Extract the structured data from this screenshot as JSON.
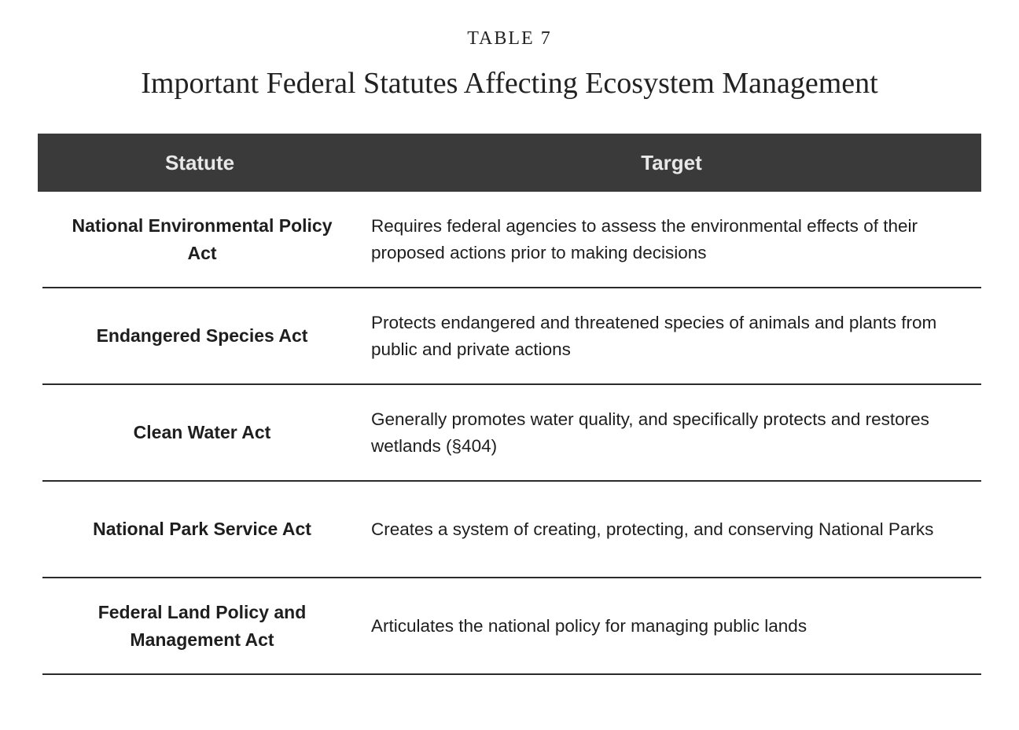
{
  "table_label": "TABLE 7",
  "table_title": "Important Federal Statutes Affecting Ecosystem Management",
  "columns": {
    "statute": "Statute",
    "target": "Target"
  },
  "rows": [
    {
      "statute": "National Environmental Policy Act",
      "target": "Requires federal agencies to assess the environmental effects of their proposed actions prior to making decisions"
    },
    {
      "statute": "Endangered Species Act",
      "target": "Protects endangered and threatened species of animals and plants from public and private actions"
    },
    {
      "statute": "Clean Water Act",
      "target": "Generally promotes water quality, and specifically protects and restores wetlands (§404)"
    },
    {
      "statute": "National Park Service Act",
      "target": "Creates a system of creating, protecting, and conserving National Parks"
    },
    {
      "statute": "Federal Land Policy and Management Act",
      "target": "Articulates the national policy for managing public lands"
    }
  ]
}
